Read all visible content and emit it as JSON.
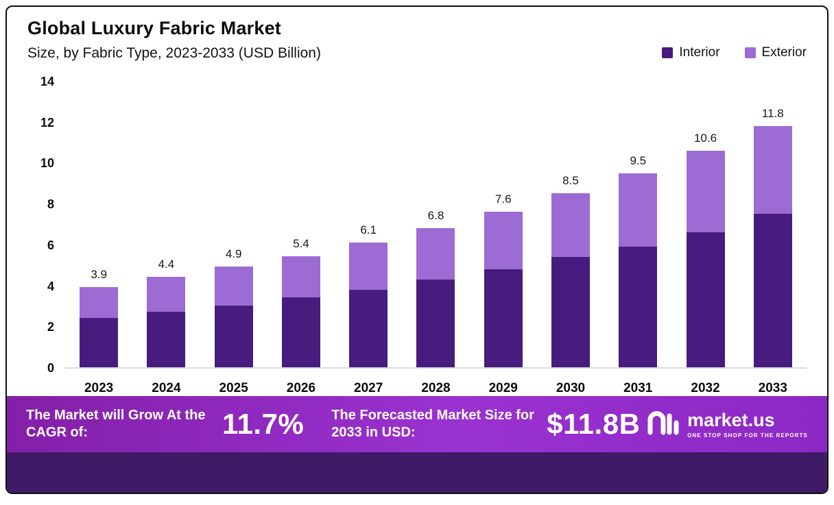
{
  "header": {
    "title": "Global Luxury Fabric Market",
    "subtitle": "Size, by Fabric Type, 2023-2033 (USD Billion)"
  },
  "chart_data": {
    "type": "bar",
    "stacked": true,
    "title": "Global Luxury Fabric Market",
    "subtitle": "Size, by Fabric Type, 2023-2033 (USD Billion)",
    "unit": "USD Billion",
    "categories": [
      "2023",
      "2024",
      "2025",
      "2026",
      "2027",
      "2028",
      "2029",
      "2030",
      "2031",
      "2032",
      "2033"
    ],
    "series": [
      {
        "name": "Interior",
        "color": "#471c7e",
        "values": [
          2.4,
          2.7,
          3.0,
          3.4,
          3.8,
          4.3,
          4.8,
          5.4,
          5.9,
          6.6,
          7.5
        ]
      },
      {
        "name": "Exterior",
        "color": "#9d6bd4",
        "values": [
          1.5,
          1.7,
          1.9,
          2.0,
          2.3,
          2.5,
          2.8,
          3.1,
          3.6,
          4.0,
          4.3
        ]
      }
    ],
    "totals": [
      3.9,
      4.4,
      4.9,
      5.4,
      6.1,
      6.8,
      7.6,
      8.5,
      9.5,
      10.6,
      11.8
    ],
    "ylim": [
      0,
      14
    ],
    "yticks": [
      0,
      2,
      4,
      6,
      8,
      10,
      12,
      14
    ],
    "grid": false,
    "legend_position": "top-right"
  },
  "footer": {
    "cagr_label": "The Market will Grow At the CAGR of:",
    "cagr_value": "11.7%",
    "forecast_label": "The Forecasted Market Size for 2033 in USD:",
    "forecast_value": "$11.8B",
    "brand_name": "market.us",
    "brand_tagline": "ONE STOP SHOP FOR THE REPORTS"
  }
}
